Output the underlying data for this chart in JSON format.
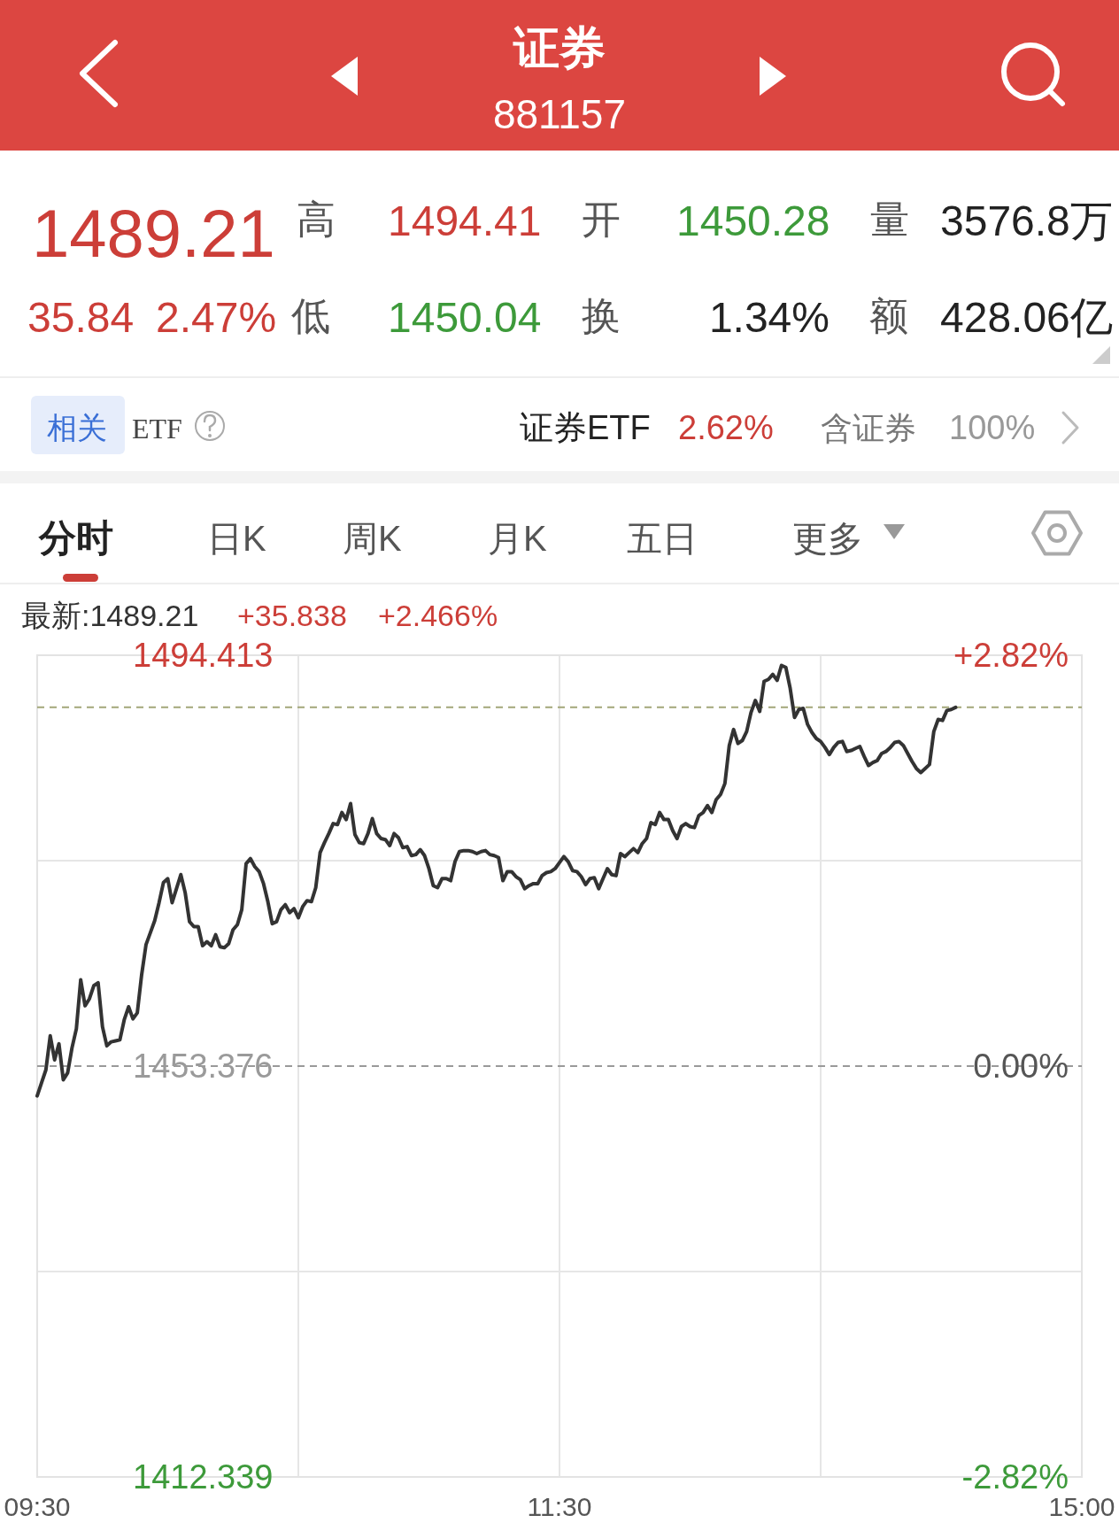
{
  "chart_data": {
    "type": "line",
    "title": "证券",
    "subtitle": "881157",
    "annotations": [
      "1489.21",
      "高",
      "1494.41",
      "开",
      "1450.28",
      "量",
      "3576.8万",
      "35.84",
      "2.47%",
      "低",
      "1450.04",
      "换",
      "1.34%",
      "额",
      "428.06亿",
      "相关",
      "ETF",
      "证券ETF",
      "2.62%",
      "含证券",
      "100%",
      "分时",
      "日K",
      "周K",
      "月K",
      "五日",
      "更多",
      "最新:1489.21",
      "+35.838",
      "+2.466%"
    ],
    "categories": [
      "09:30",
      null,
      null,
      null,
      null,
      null,
      null,
      null,
      null,
      null,
      null,
      null,
      null,
      null,
      null,
      null,
      null,
      null,
      null,
      null,
      null,
      null,
      null,
      null,
      null,
      null,
      null,
      null,
      null,
      null,
      null,
      null,
      null,
      null,
      null,
      null,
      null,
      null,
      null,
      null,
      null,
      null,
      null,
      null,
      null,
      null,
      null,
      null,
      null,
      null,
      null,
      null,
      null,
      null,
      null,
      null,
      null,
      null,
      null,
      null,
      null,
      null,
      null,
      null,
      null,
      null,
      null,
      null,
      null,
      null,
      null,
      null,
      null,
      null,
      null,
      null,
      null,
      null,
      null,
      null,
      null,
      null,
      null,
      null,
      null,
      null,
      null,
      null,
      null,
      null,
      null,
      null,
      null,
      null,
      null,
      null,
      null,
      null,
      null,
      null,
      null,
      null,
      null,
      null,
      null,
      null,
      null,
      null,
      null,
      null,
      null,
      null,
      null,
      null,
      null,
      null,
      null,
      null,
      null,
      null,
      "11:30",
      null,
      null,
      null,
      null,
      null,
      null,
      null,
      null,
      null,
      null,
      null,
      null,
      null,
      null,
      null,
      null,
      null,
      null,
      null,
      null,
      null,
      null,
      null,
      null,
      null,
      null,
      null,
      null,
      null,
      null,
      null,
      null,
      null,
      null,
      null,
      null,
      null,
      null,
      null,
      null,
      null,
      null,
      null,
      null,
      null,
      null,
      null,
      null,
      null,
      null,
      null,
      null,
      null,
      null,
      null,
      null,
      null,
      null,
      null,
      null,
      null,
      null,
      null,
      null,
      null,
      null,
      null,
      null,
      null,
      null,
      null,
      null,
      null,
      null,
      null,
      null,
      null,
      null,
      null,
      null,
      null,
      null,
      null,
      null,
      null,
      null,
      null,
      null,
      null,
      null,
      null,
      null,
      null,
      null,
      null,
      null,
      null,
      null,
      null,
      null,
      null,
      null,
      null,
      null,
      null,
      null,
      null,
      null,
      null,
      null,
      null,
      null,
      null,
      null,
      null,
      null,
      null,
      null,
      null,
      "15:00"
    ],
    "values": [
      1450.4,
      1451.7,
      1453.0,
      1456.4,
      1454.0,
      1455.6,
      1452.0,
      1452.7,
      1455.2,
      1457.1,
      1462.0,
      1459.4,
      1460.1,
      1461.4,
      1461.7,
      1457.3,
      1455.4,
      1455.8,
      1455.9,
      1456.0,
      1458.0,
      1459.3,
      1458.1,
      1458.7,
      1462.5,
      1465.5,
      1466.7,
      1467.9,
      1469.7,
      1471.7,
      1472.1,
      1469.7,
      1471.1,
      1472.5,
      1470.7,
      1467.8,
      1467.3,
      1467.3,
      1465.4,
      1465.8,
      1465.4,
      1466.5,
      1465.3,
      1465.2,
      1465.6,
      1467.0,
      1467.5,
      1469.0,
      1473.6,
      1474.1,
      1473.3,
      1472.8,
      1471.6,
      1469.8,
      1467.6,
      1467.8,
      1469.0,
      1469.5,
      1468.7,
      1469.1,
      1468.2,
      1469.3,
      1469.9,
      1469.8,
      1471.2,
      1474.7,
      1475.7,
      1476.6,
      1477.6,
      1477.5,
      1478.7,
      1478.0,
      1479.6,
      1476.5,
      1475.7,
      1475.6,
      1476.6,
      1478.1,
      1476.6,
      1476.1,
      1476.0,
      1475.4,
      1476.6,
      1476.2,
      1475.2,
      1475.3,
      1474.4,
      1474.5,
      1475.0,
      1474.4,
      1473.1,
      1471.4,
      1471.2,
      1472.1,
      1472.1,
      1471.9,
      1473.8,
      1474.8,
      1474.9,
      1474.9,
      1474.8,
      1474.6,
      1474.8,
      1474.9,
      1474.5,
      1474.4,
      1474.2,
      1471.9,
      1472.8,
      1472.8,
      1472.3,
      1472.0,
      1471.1,
      1471.4,
      1471.6,
      1471.6,
      1472.4,
      1472.7,
      1472.8,
      1473.1,
      1473.7,
      1474.3,
      1473.8,
      1472.9,
      1472.8,
      1472.3,
      1471.5,
      1472.1,
      1472.2,
      1471.1,
      1472.1,
      1473.1,
      1472.5,
      1472.4,
      1474.6,
      1474.3,
      1474.7,
      1475.1,
      1474.7,
      1475.6,
      1476.1,
      1477.7,
      1477.5,
      1478.7,
      1478.0,
      1478.0,
      1476.9,
      1476.1,
      1477.3,
      1477.6,
      1477.3,
      1477.2,
      1478.4,
      1478.7,
      1479.4,
      1478.7,
      1480.0,
      1480.5,
      1481.6,
      1485.4,
      1487.0,
      1485.6,
      1485.9,
      1486.8,
      1488.7,
      1489.9,
      1488.8,
      1491.8,
      1492.0,
      1492.5,
      1491.9,
      1493.4,
      1493.2,
      1491.1,
      1488.2,
      1489.0,
      1489.1,
      1487.5,
      1486.7,
      1486.1,
      1485.8,
      1485.2,
      1484.5,
      1485.2,
      1485.7,
      1485.8,
      1484.8,
      1484.9,
      1485.1,
      1485.3,
      1484.3,
      1483.4,
      1483.7,
      1483.9,
      1484.6,
      1484.8,
      1485.2,
      1485.7,
      1485.8,
      1485.4,
      1484.6,
      1483.8,
      1483.1,
      1482.7,
      1483.1,
      1483.5,
      1486.8,
      1488.0,
      1487.9,
      1488.9,
      1489.0,
      1489.2,
      null,
      null,
      null,
      null,
      null,
      null,
      null,
      null,
      null,
      null,
      null,
      null,
      null,
      null,
      null,
      null,
      null,
      null,
      null,
      null,
      null,
      null,
      null,
      null,
      null,
      null,
      null,
      null,
      null
    ],
    "color": "#333333",
    "ylim": [
      1412.339,
      1494.413
    ],
    "yticks": [
      1412.339,
      {
        "value": 1432.86,
        "label": null
      },
      1453.376,
      {
        "value": 1473.89,
        "label": null
      },
      1494.413
    ],
    "y2lim": [
      -2.82,
      2.82
    ],
    "y2ticks": [
      {
        "value": -2.82,
        "label": "-2.82%"
      },
      {
        "value": 0,
        "label": "0.00%"
      },
      {
        "value": 2.82,
        "label": "+2.82%"
      }
    ],
    "ref_lines": [
      {
        "axis": "y",
        "value": 1453.376,
        "color": "#9a9a9a",
        "line_style": "dashed"
      },
      {
        "axis": "y",
        "value": 1489.21,
        "color": "#a3a67a",
        "line_style": "dashed"
      }
    ],
    "grid": true
  }
}
